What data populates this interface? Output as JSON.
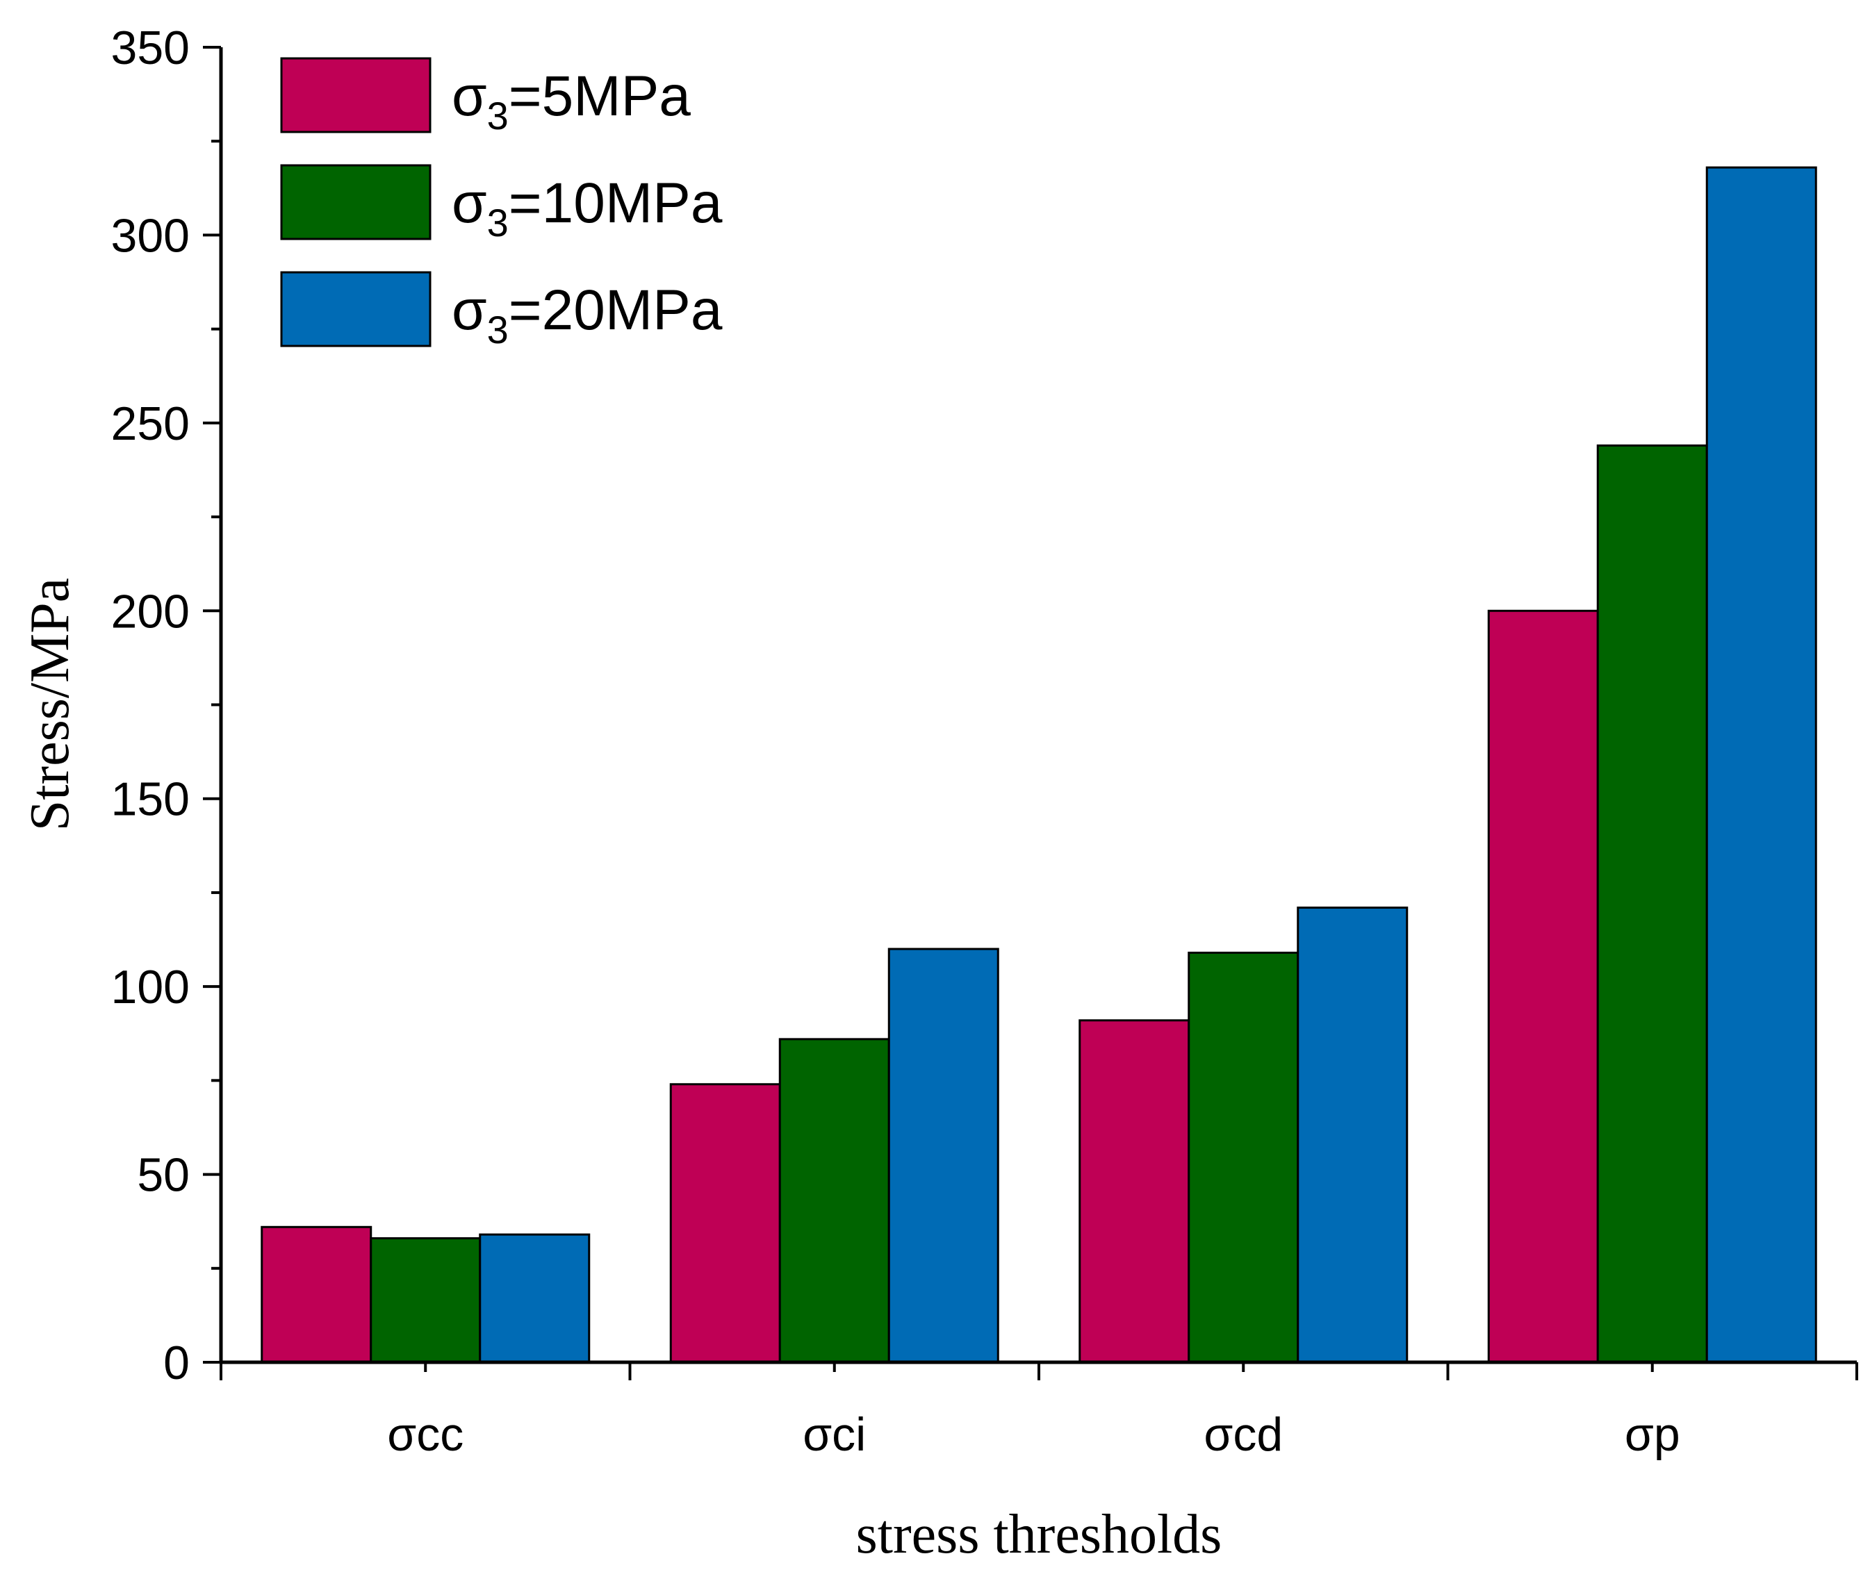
{
  "chart_data": {
    "type": "bar",
    "title": "",
    "xlabel": "stress thresholds",
    "ylabel": "Stress/MPa",
    "ylim": [
      0,
      350
    ],
    "yticks": [
      0,
      50,
      100,
      150,
      200,
      250,
      300,
      350
    ],
    "categories": [
      "σcc",
      "σci",
      "σcd",
      "σp"
    ],
    "series": [
      {
        "name": "σ3=5MPa",
        "sym": "σ",
        "sub": "3",
        "rest": "=5MPa",
        "color": "#bf0055",
        "values": [
          36,
          74,
          91,
          200
        ]
      },
      {
        "name": "σ3=10MPa",
        "sym": "σ",
        "sub": "3",
        "rest": "=10MPa",
        "color": "#006400",
        "values": [
          33,
          86,
          109,
          244
        ]
      },
      {
        "name": "σ3=20MPa",
        "sym": "σ",
        "sub": "3",
        "rest": "=20MPa",
        "color": "#006bb5",
        "values": [
          34,
          110,
          121,
          318
        ]
      }
    ],
    "legend_position": "top-left",
    "grid": false
  }
}
